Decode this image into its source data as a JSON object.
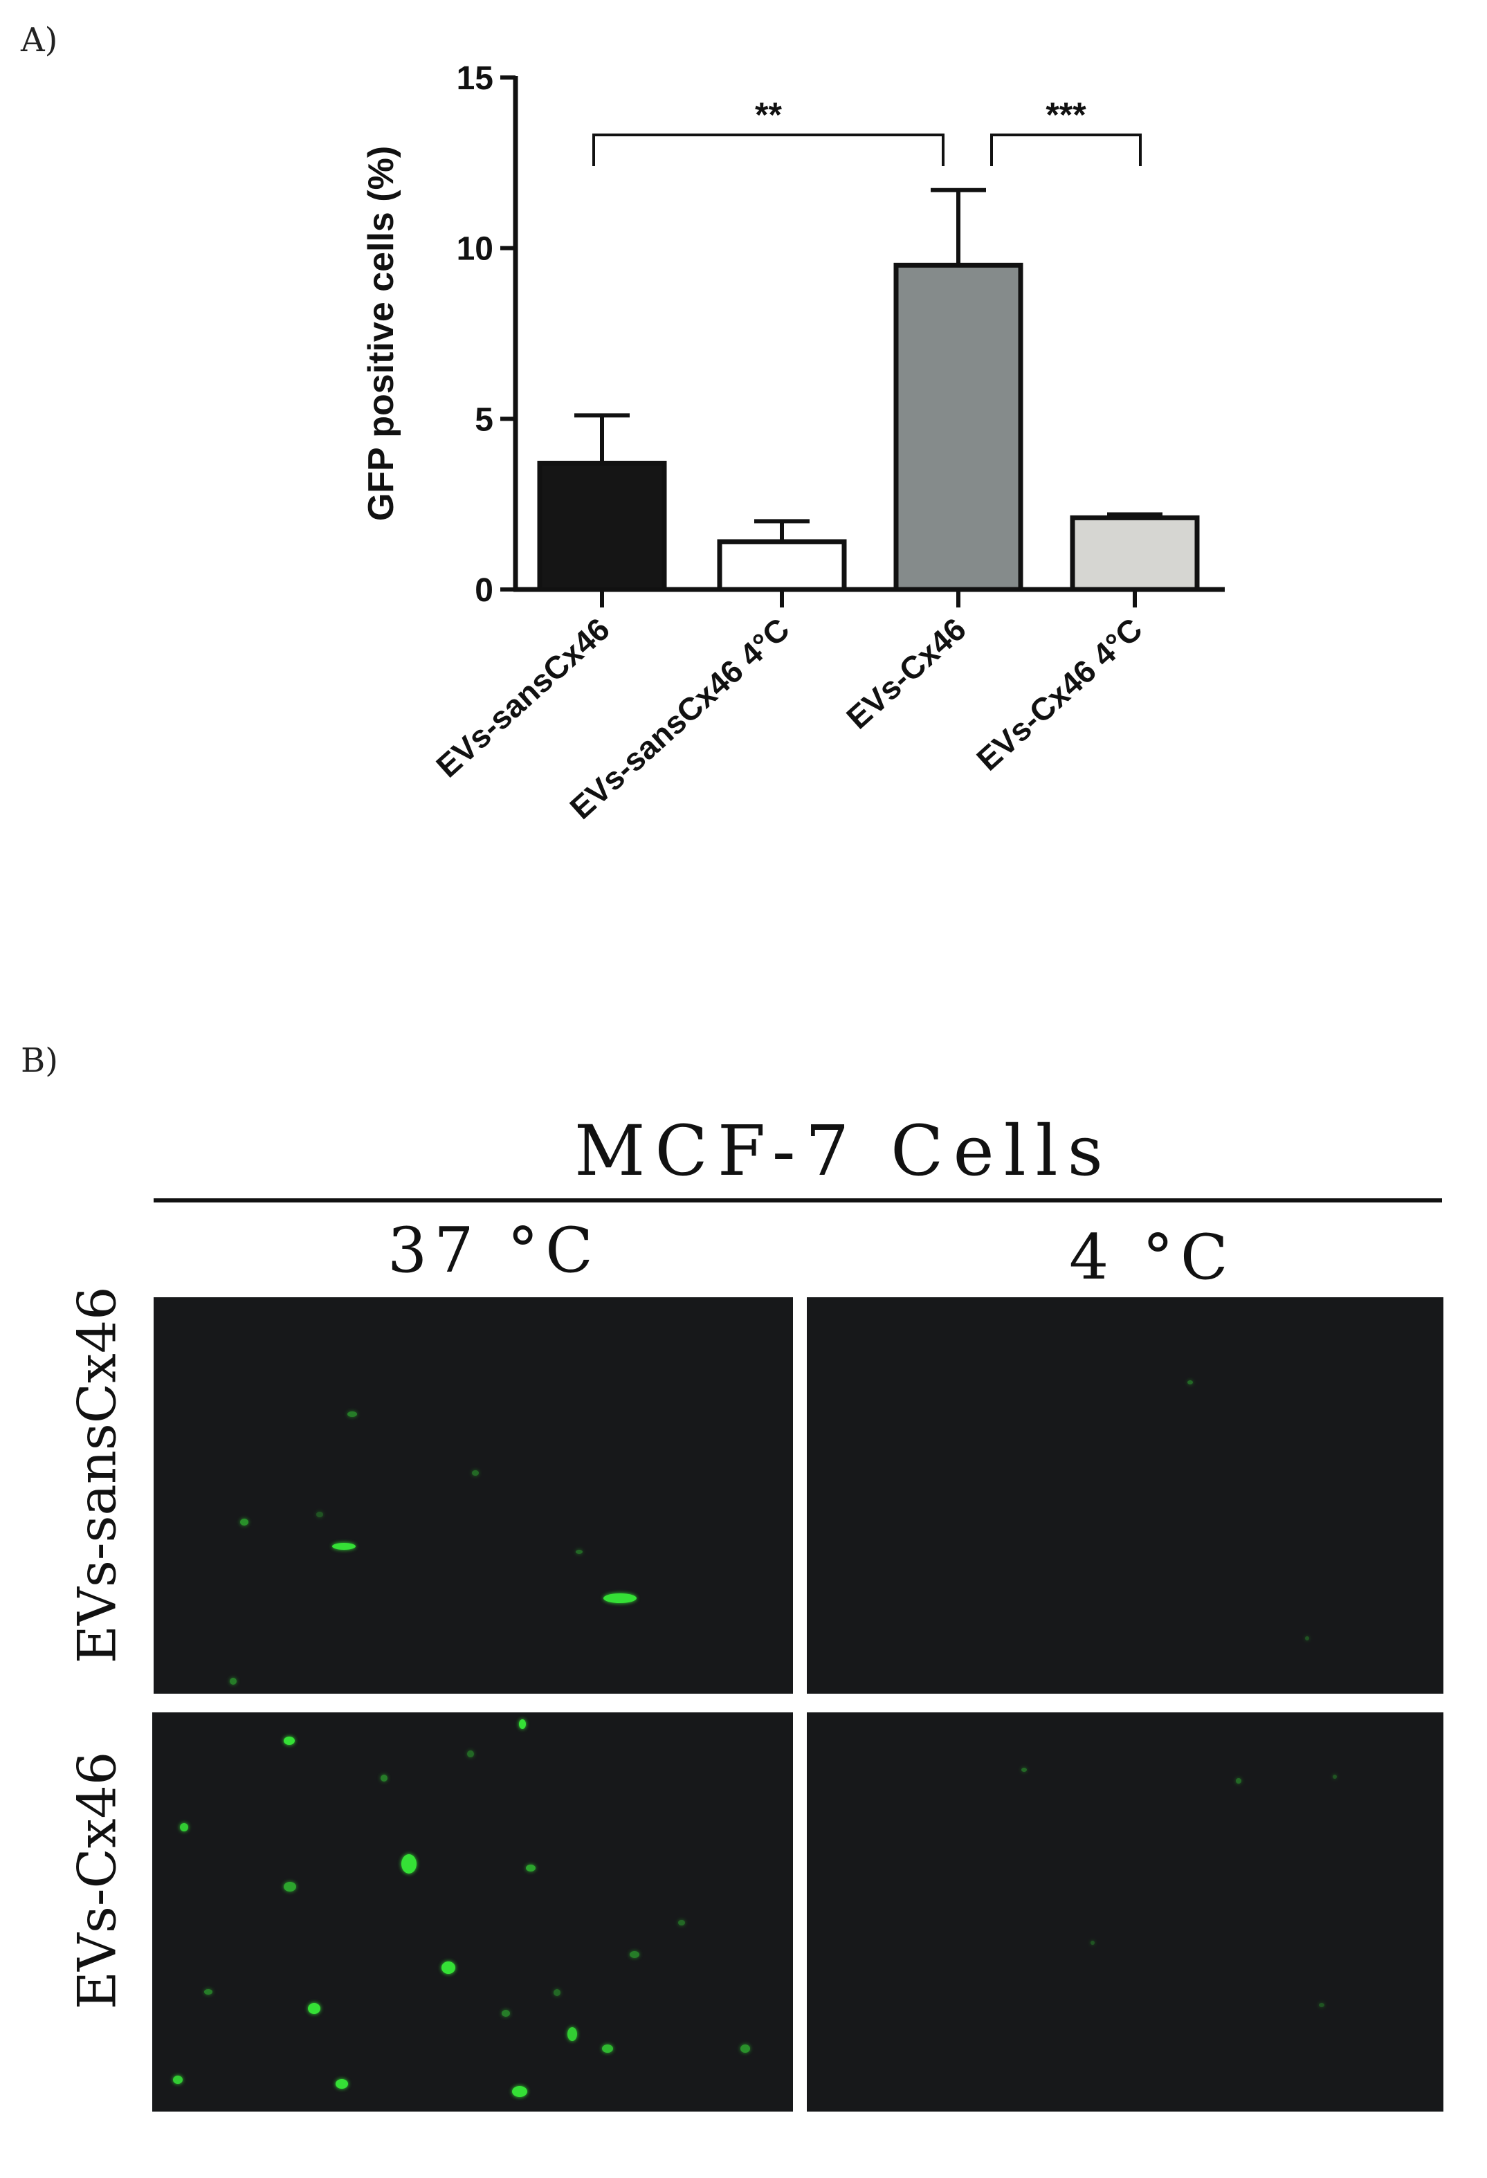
{
  "panel_a_label": "A)",
  "panel_b_label": "B)",
  "chart_data": {
    "type": "bar",
    "ylabel": "GFP positive cells (%)",
    "ylim": [
      0,
      15
    ],
    "yticks": [
      0,
      5,
      10,
      15
    ],
    "categories": [
      "EVs-sansCx46",
      "EVs-sansCx46  4°C",
      "EVs-Cx46",
      "EVs-Cx46 4°C"
    ],
    "values": [
      3.7,
      1.4,
      9.5,
      2.1
    ],
    "errors": [
      1.4,
      0.6,
      2.2,
      0.1
    ],
    "bar_colors": [
      "#151515",
      "#ffffff",
      "#858b8b",
      "#d6d6d2"
    ],
    "significance": [
      {
        "from": 0,
        "to": 2,
        "label": "**"
      },
      {
        "from": 2,
        "to": 3,
        "label": "***"
      }
    ]
  },
  "panel_b": {
    "title": "MCF-7 Cells",
    "columns": [
      "37 °C",
      "4 °C"
    ],
    "rows": [
      "EVs-sansCx46",
      "EVs-Cx46"
    ],
    "tile_color": "#17181a",
    "fluorescence_color": "#35e036"
  }
}
